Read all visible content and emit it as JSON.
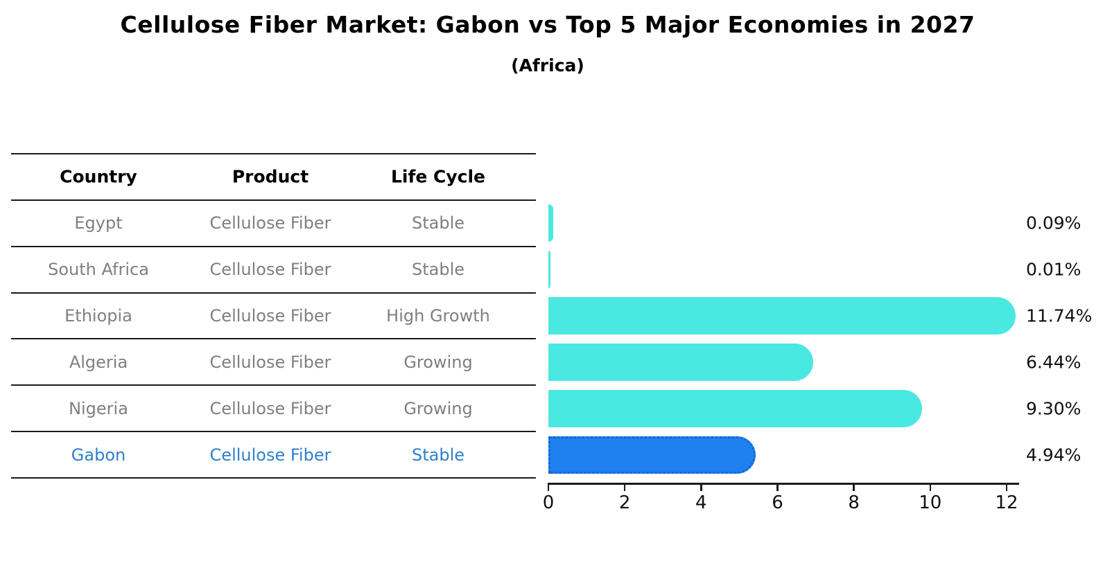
{
  "title": "Cellulose Fiber Market: Gabon vs Top 5 Major Economies in 2027",
  "subtitle": "(Africa)",
  "table": {
    "headers": [
      "Country",
      "Product",
      "Life Cycle"
    ],
    "rows": [
      {
        "country": "Egypt",
        "product": "Cellulose Fiber",
        "life_cycle": "Stable",
        "highlight": false
      },
      {
        "country": "South Africa",
        "product": "Cellulose Fiber",
        "life_cycle": "Stable",
        "highlight": false
      },
      {
        "country": "Ethiopia",
        "product": "Cellulose Fiber",
        "life_cycle": "High Growth",
        "highlight": false
      },
      {
        "country": "Algeria",
        "product": "Cellulose Fiber",
        "life_cycle": "Growing",
        "highlight": false
      },
      {
        "country": "Nigeria",
        "product": "Cellulose Fiber",
        "life_cycle": "Growing",
        "highlight": false
      },
      {
        "country": "Gabon",
        "product": "Cellulose Fiber",
        "life_cycle": "Stable",
        "highlight": true
      }
    ]
  },
  "chart_data": {
    "type": "bar",
    "orientation": "horizontal",
    "title": "Cellulose Fiber Market: Gabon vs Top 5 Major Economies in 2027 (Africa)",
    "categories": [
      "Egypt",
      "South Africa",
      "Ethiopia",
      "Algeria",
      "Nigeria",
      "Gabon"
    ],
    "values": [
      0.09,
      0.01,
      11.74,
      6.44,
      9.3,
      4.94
    ],
    "value_labels": [
      "0.09%",
      "0.01%",
      "11.74%",
      "6.44%",
      "9.30%",
      "4.94%"
    ],
    "x_ticks": [
      "0",
      "2",
      "4",
      "6",
      "8",
      "10",
      "12"
    ],
    "xlim": [
      0,
      12
    ],
    "grid": false,
    "legend": false,
    "bar_color": "#49e8e0",
    "highlight_bar_color": "#1f80f0",
    "highlight_index": 5
  },
  "colors": {
    "bar": "#49e8e0",
    "highlight_bar": "#1f80f0",
    "highlight_bar_edge": "#1565d0",
    "highlight_text": "#2e80cc",
    "table_text": "#7f7f7f",
    "header_text": "#000000",
    "axis": "#1a1a1a"
  }
}
